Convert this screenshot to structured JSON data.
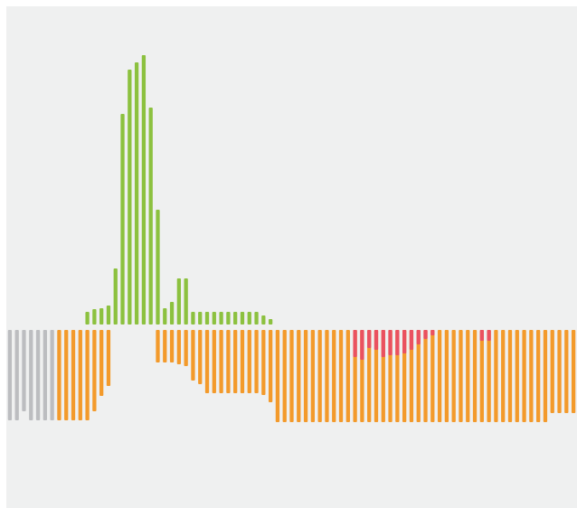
{
  "colors": {
    "background": "#eff0f0",
    "positive": "#8cc13f",
    "negative": "#f39a2b",
    "neutral": "#bcbdc0",
    "highlight": "#ea5160"
  },
  "chart_data": {
    "type": "bar",
    "baseline": 0,
    "ylim": [
      -100,
      300
    ],
    "grid": false,
    "legend": "none",
    "orientation": "diverging",
    "bars": [
      {
        "value": -100,
        "kind": "neutral"
      },
      {
        "value": -100,
        "kind": "neutral"
      },
      {
        "value": -90,
        "kind": "neutral"
      },
      {
        "value": -100,
        "kind": "neutral"
      },
      {
        "value": -100,
        "kind": "neutral"
      },
      {
        "value": -100,
        "kind": "neutral"
      },
      {
        "value": -100,
        "kind": "neutral"
      },
      {
        "value": -100,
        "kind": "negative"
      },
      {
        "value": -100,
        "kind": "negative"
      },
      {
        "value": -100,
        "kind": "negative"
      },
      {
        "value": -100,
        "kind": "negative"
      },
      {
        "value": -100,
        "kind": "negative",
        "positive": 14
      },
      {
        "value": -90,
        "kind": "negative",
        "positive": 17
      },
      {
        "value": -73,
        "kind": "negative",
        "positive": 18
      },
      {
        "value": -62,
        "kind": "negative",
        "positive": 21
      },
      {
        "value": 0,
        "kind": "positive",
        "positive": 62
      },
      {
        "value": 0,
        "kind": "positive",
        "positive": 233
      },
      {
        "value": 0,
        "kind": "positive",
        "positive": 282
      },
      {
        "value": 0,
        "kind": "positive",
        "positive": 290
      },
      {
        "value": 0,
        "kind": "positive",
        "positive": 298
      },
      {
        "value": 0,
        "kind": "positive",
        "positive": 240
      },
      {
        "value": -36,
        "kind": "negative",
        "positive": 127
      },
      {
        "value": -36,
        "kind": "negative",
        "positive": 18
      },
      {
        "value": -36,
        "kind": "negative",
        "positive": 25
      },
      {
        "value": -38,
        "kind": "negative",
        "positive": 51
      },
      {
        "value": -40,
        "kind": "negative",
        "positive": 51
      },
      {
        "value": -56,
        "kind": "negative",
        "positive": 14
      },
      {
        "value": -60,
        "kind": "negative",
        "positive": 14
      },
      {
        "value": -70,
        "kind": "negative",
        "positive": 14
      },
      {
        "value": -70,
        "kind": "negative",
        "positive": 14
      },
      {
        "value": -70,
        "kind": "negative",
        "positive": 14
      },
      {
        "value": -70,
        "kind": "negative",
        "positive": 14
      },
      {
        "value": -70,
        "kind": "negative",
        "positive": 14
      },
      {
        "value": -70,
        "kind": "negative",
        "positive": 14
      },
      {
        "value": -70,
        "kind": "negative",
        "positive": 14
      },
      {
        "value": -70,
        "kind": "negative",
        "positive": 14
      },
      {
        "value": -72,
        "kind": "negative",
        "positive": 10
      },
      {
        "value": -80,
        "kind": "negative",
        "positive": 6
      },
      {
        "value": -102,
        "kind": "negative"
      },
      {
        "value": -102,
        "kind": "negative"
      },
      {
        "value": -102,
        "kind": "negative"
      },
      {
        "value": -102,
        "kind": "negative"
      },
      {
        "value": -102,
        "kind": "negative"
      },
      {
        "value": -102,
        "kind": "negative"
      },
      {
        "value": -102,
        "kind": "negative"
      },
      {
        "value": -102,
        "kind": "negative"
      },
      {
        "value": -102,
        "kind": "negative"
      },
      {
        "value": -102,
        "kind": "negative"
      },
      {
        "value": -102,
        "kind": "negative"
      },
      {
        "value": -102,
        "kind": "negative",
        "highlight": 30
      },
      {
        "value": -102,
        "kind": "negative",
        "highlight": 33
      },
      {
        "value": -102,
        "kind": "negative",
        "highlight": 20
      },
      {
        "value": -102,
        "kind": "negative",
        "highlight": 22
      },
      {
        "value": -102,
        "kind": "negative",
        "highlight": 30
      },
      {
        "value": -102,
        "kind": "negative",
        "highlight": 28
      },
      {
        "value": -102,
        "kind": "negative",
        "highlight": 28
      },
      {
        "value": -102,
        "kind": "negative",
        "highlight": 26
      },
      {
        "value": -102,
        "kind": "negative",
        "highlight": 22
      },
      {
        "value": -102,
        "kind": "negative",
        "highlight": 16
      },
      {
        "value": -102,
        "kind": "negative",
        "highlight": 10
      },
      {
        "value": -102,
        "kind": "negative",
        "highlight": 6
      },
      {
        "value": -102,
        "kind": "negative"
      },
      {
        "value": -102,
        "kind": "negative"
      },
      {
        "value": -102,
        "kind": "negative"
      },
      {
        "value": -102,
        "kind": "negative"
      },
      {
        "value": -102,
        "kind": "negative"
      },
      {
        "value": -102,
        "kind": "negative"
      },
      {
        "value": -102,
        "kind": "negative",
        "highlight": 12
      },
      {
        "value": -102,
        "kind": "negative",
        "highlight": 12
      },
      {
        "value": -102,
        "kind": "negative"
      },
      {
        "value": -102,
        "kind": "negative"
      },
      {
        "value": -102,
        "kind": "negative"
      },
      {
        "value": -102,
        "kind": "negative"
      },
      {
        "value": -102,
        "kind": "negative"
      },
      {
        "value": -102,
        "kind": "negative"
      },
      {
        "value": -102,
        "kind": "negative"
      },
      {
        "value": -102,
        "kind": "negative"
      },
      {
        "value": -92,
        "kind": "negative"
      },
      {
        "value": -92,
        "kind": "negative"
      },
      {
        "value": -92,
        "kind": "negative"
      },
      {
        "value": -92,
        "kind": "negative"
      }
    ]
  }
}
